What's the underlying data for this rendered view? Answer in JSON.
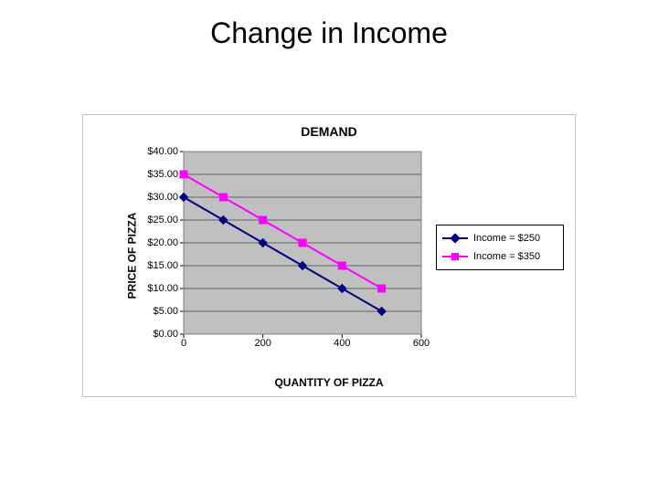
{
  "slide": {
    "title": "Change in Income"
  },
  "chart": {
    "type": "line",
    "title": "DEMAND",
    "title_fontsize": 14,
    "title_fontweight": "bold",
    "x_axis": {
      "label": "QUANTITY OF PIZZA",
      "label_fontsize": 12,
      "label_fontweight": "bold",
      "min": 0,
      "max": 600,
      "tick_step": 200,
      "ticks": [
        0,
        200,
        400,
        600
      ],
      "tick_labels": [
        "0",
        "200",
        "400",
        "600"
      ]
    },
    "y_axis": {
      "label": "PRICE OF PIZZA",
      "label_fontsize": 12,
      "label_fontweight": "bold",
      "min": 0,
      "max": 40,
      "tick_step": 5,
      "ticks": [
        0,
        5,
        10,
        15,
        20,
        25,
        30,
        35,
        40
      ],
      "tick_labels": [
        "$0.00",
        "$5.00",
        "$10.00",
        "$15.00",
        "$20.00",
        "$25.00",
        "$30.00",
        "$35.00",
        "$40.00"
      ]
    },
    "plot_background_color": "#c0c0c0",
    "gridline_color": "#000000",
    "chart_border_color": "#c0c0c0",
    "series": [
      {
        "name": "Income = $250",
        "color": "#000080",
        "marker": "diamond",
        "marker_size": 9,
        "line_width": 2,
        "x": [
          0,
          100,
          200,
          300,
          400,
          500
        ],
        "y": [
          30,
          25,
          20,
          15,
          10,
          5
        ]
      },
      {
        "name": "Income = $350",
        "color": "#ff00ff",
        "marker": "square",
        "marker_size": 8,
        "line_width": 2,
        "x": [
          0,
          100,
          200,
          300,
          400,
          500
        ],
        "y": [
          35,
          30,
          25,
          20,
          15,
          10
        ]
      }
    ],
    "legend": {
      "position": "right",
      "border_color": "#000000",
      "background_color": "#ffffff",
      "fontsize": 11
    }
  }
}
